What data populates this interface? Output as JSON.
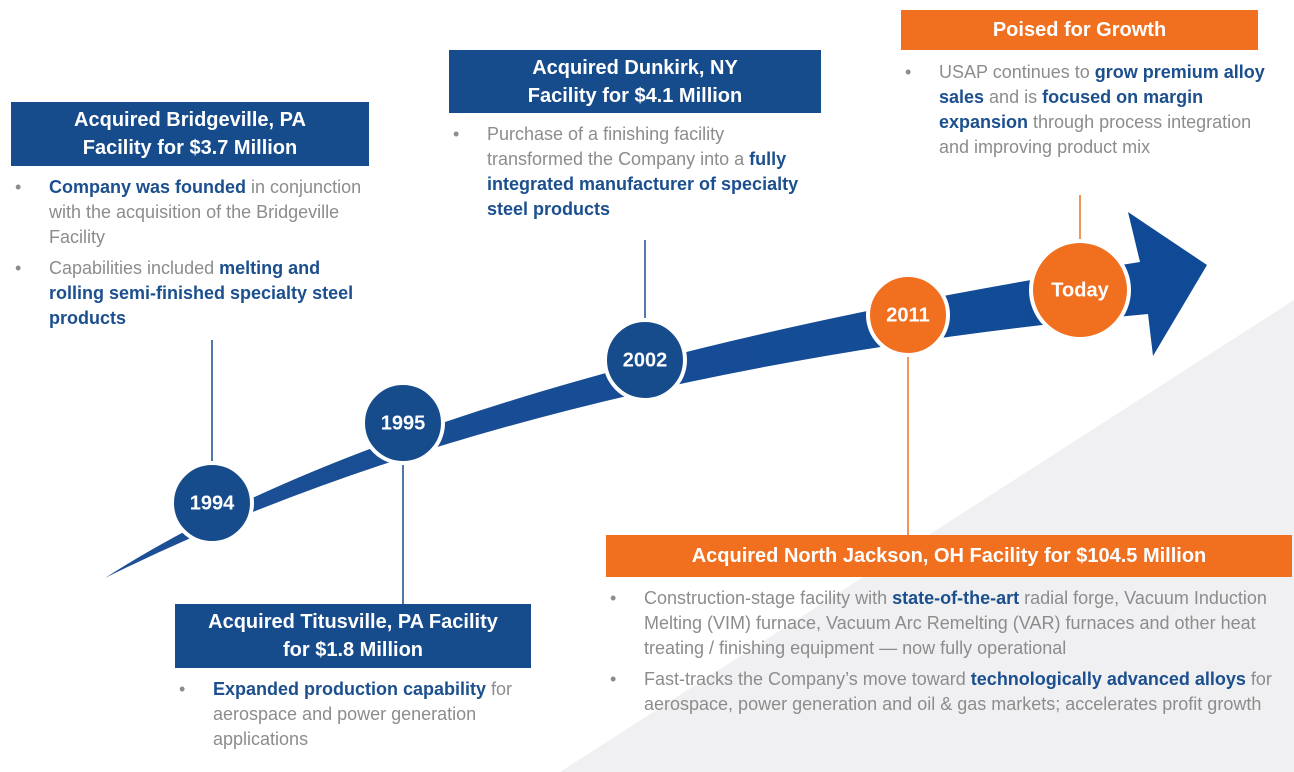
{
  "milestones": [
    "1994",
    "1995",
    "2002",
    "2011",
    "Today"
  ],
  "sections": [
    {
      "title": [
        "Acquired Bridgeville, PA",
        "Facility for $3.7 Million"
      ],
      "bullets": [
        [
          {
            "text": "Company was founded",
            "bold": true
          },
          {
            "text": " in conjunction with the acquisition of the Bridgeville Facility"
          }
        ],
        [
          {
            "text": "Capabilities included "
          },
          {
            "text": "melting and rolling semi-finished specialty steel products",
            "bold": true
          }
        ]
      ]
    },
    {
      "title": [
        "Acquired Titusville, PA Facility",
        "for $1.8 Million"
      ],
      "bullets": [
        [
          {
            "text": "Expanded production capability",
            "bold": true
          },
          {
            "text": " for aerospace and power generation applications"
          }
        ]
      ]
    },
    {
      "title": [
        "Acquired Dunkirk, NY",
        "Facility for $4.1 Million"
      ],
      "bullets": [
        [
          {
            "text": "Purchase of a finishing facility transformed the Company into a "
          },
          {
            "text": "fully integrated manufacturer of specialty steel products",
            "bold": true
          }
        ]
      ]
    },
    {
      "title": [
        "Acquired North Jackson, OH Facility for $104.5 Million"
      ],
      "bullets": [
        [
          {
            "text": "Construction-stage facility with "
          },
          {
            "text": "state-of-the-art",
            "bold": true
          },
          {
            "text": " radial forge, Vacuum Induction Melting (VIM) furnace, Vacuum Arc Remelting (VAR) furnaces and other heat treating / finishing equipment — now fully operational"
          }
        ],
        [
          {
            "text": "Fast-tracks the Company’s move toward "
          },
          {
            "text": "technologically advanced alloys",
            "bold": true
          },
          {
            "text": " for aerospace, power generation and oil & gas markets; accelerates profit growth"
          }
        ]
      ]
    },
    {
      "title": [
        "Poised for Growth"
      ],
      "bullets": [
        [
          {
            "text": "USAP continues to "
          },
          {
            "text": "grow premium alloy sales",
            "bold": true
          },
          {
            "text": " and is "
          },
          {
            "text": "focused on margin expansion",
            "bold": true
          },
          {
            "text": " through process integration and improving product mix"
          }
        ]
      ]
    }
  ]
}
